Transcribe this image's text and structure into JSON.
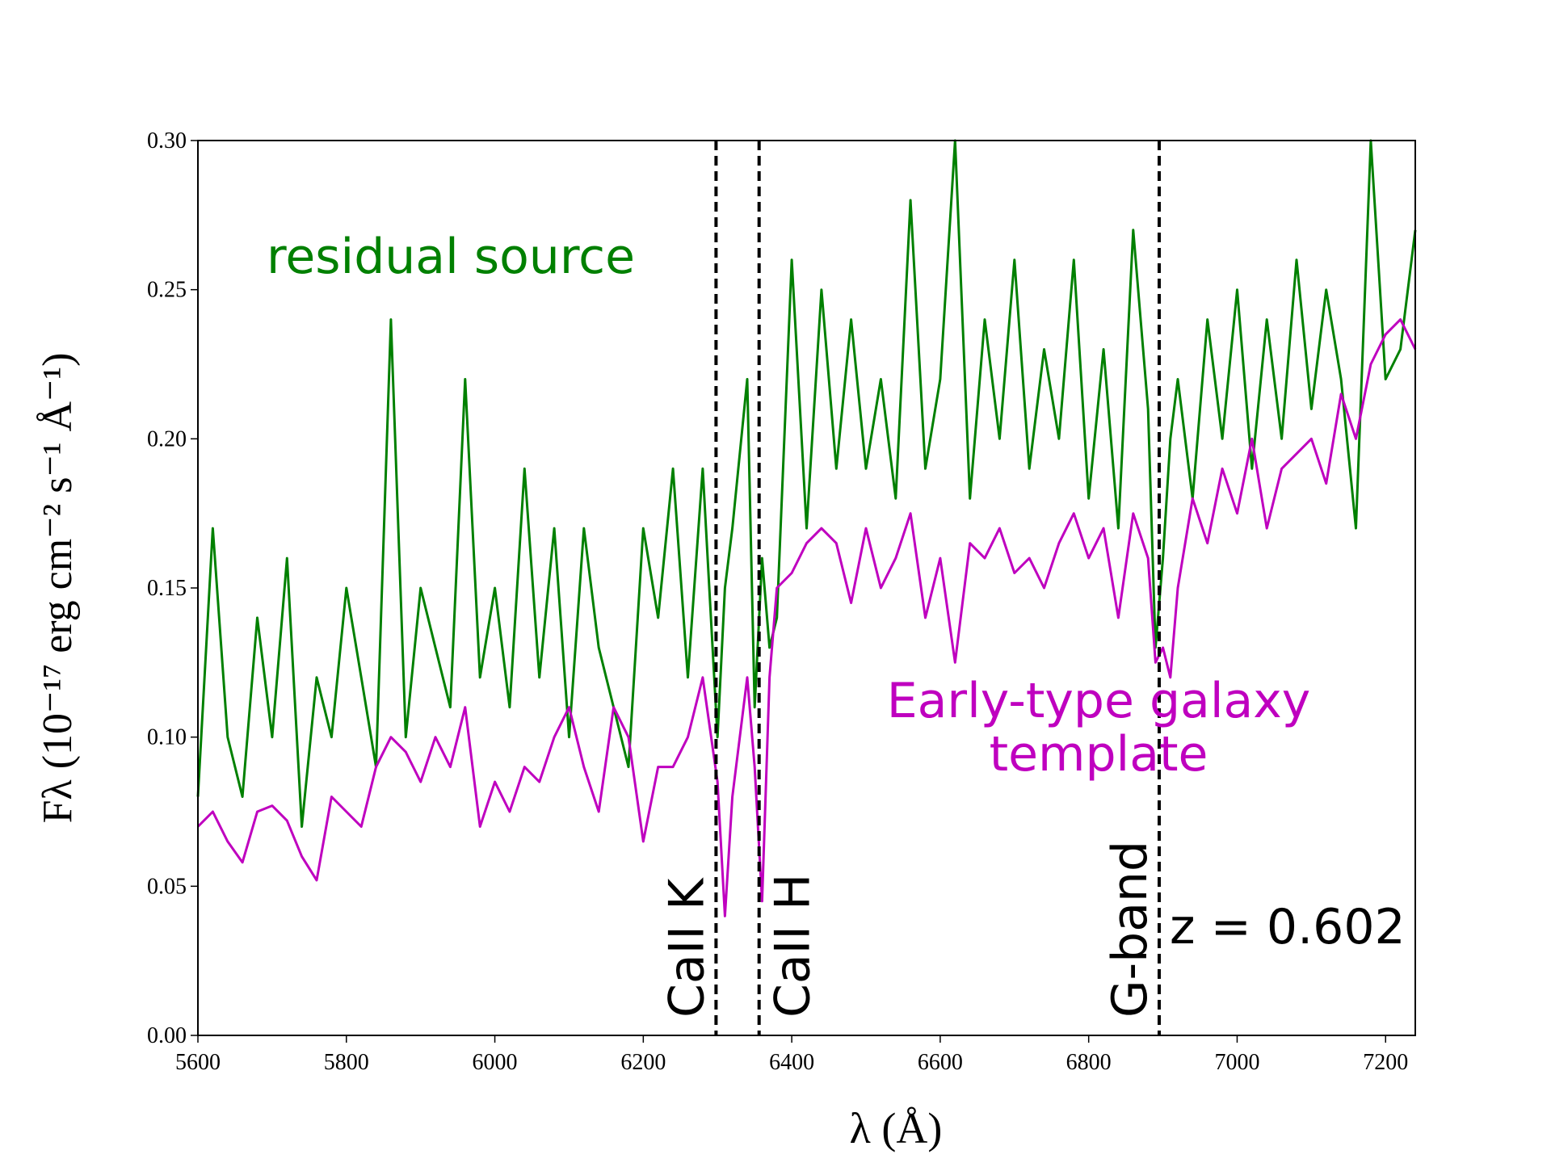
{
  "chart_data": {
    "type": "line",
    "xlabel": "λ (Å)",
    "ylabel": "Fλ (10⁻¹⁷ erg cm⁻² s⁻¹ Å⁻¹)",
    "x": [
      5600,
      5620,
      5640,
      5660,
      5680,
      5700,
      5720,
      5740,
      5760,
      5780,
      5800,
      5820,
      5840,
      5860,
      5880,
      5900,
      5920,
      5940,
      5960,
      5980,
      6000,
      6020,
      6040,
      6060,
      6080,
      6100,
      6120,
      6140,
      6160,
      6180,
      6200,
      6220,
      6240,
      6260,
      6280,
      6300,
      6310,
      6320,
      6340,
      6350,
      6360,
      6370,
      6380,
      6400,
      6420,
      6440,
      6460,
      6480,
      6500,
      6520,
      6540,
      6560,
      6580,
      6600,
      6620,
      6640,
      6660,
      6680,
      6700,
      6720,
      6740,
      6760,
      6780,
      6800,
      6820,
      6840,
      6860,
      6880,
      6890,
      6900,
      6910,
      6920,
      6940,
      6960,
      6980,
      7000,
      7020,
      7040,
      7060,
      7080,
      7100,
      7120,
      7140,
      7160,
      7180,
      7200,
      7220,
      7240
    ],
    "series": [
      {
        "name": "residual source",
        "color": "#008000",
        "values": [
          0.08,
          0.17,
          0.1,
          0.08,
          0.14,
          0.1,
          0.16,
          0.07,
          0.12,
          0.1,
          0.15,
          0.12,
          0.09,
          0.24,
          0.1,
          0.15,
          0.13,
          0.11,
          0.22,
          0.12,
          0.15,
          0.11,
          0.19,
          0.12,
          0.17,
          0.1,
          0.17,
          0.13,
          0.11,
          0.09,
          0.17,
          0.14,
          0.19,
          0.12,
          0.19,
          0.1,
          0.15,
          0.17,
          0.22,
          0.11,
          0.16,
          0.13,
          0.14,
          0.26,
          0.17,
          0.25,
          0.19,
          0.24,
          0.19,
          0.22,
          0.18,
          0.28,
          0.19,
          0.22,
          0.3,
          0.18,
          0.24,
          0.2,
          0.26,
          0.19,
          0.23,
          0.2,
          0.26,
          0.18,
          0.23,
          0.17,
          0.27,
          0.21,
          0.13,
          0.16,
          0.2,
          0.22,
          0.18,
          0.24,
          0.2,
          0.25,
          0.19,
          0.24,
          0.2,
          0.26,
          0.21,
          0.25,
          0.22,
          0.17,
          0.3,
          0.22,
          0.23,
          0.27
        ]
      },
      {
        "name": "Early-type galaxy template",
        "color": "#bf00bf",
        "values": [
          0.07,
          0.075,
          0.065,
          0.058,
          0.075,
          0.077,
          0.072,
          0.06,
          0.052,
          0.08,
          0.075,
          0.07,
          0.09,
          0.1,
          0.095,
          0.085,
          0.1,
          0.09,
          0.11,
          0.07,
          0.085,
          0.075,
          0.09,
          0.085,
          0.1,
          0.11,
          0.09,
          0.075,
          0.11,
          0.1,
          0.065,
          0.09,
          0.09,
          0.1,
          0.12,
          0.085,
          0.04,
          0.08,
          0.12,
          0.09,
          0.045,
          0.12,
          0.15,
          0.155,
          0.165,
          0.17,
          0.165,
          0.145,
          0.17,
          0.15,
          0.16,
          0.175,
          0.14,
          0.16,
          0.125,
          0.165,
          0.16,
          0.17,
          0.155,
          0.16,
          0.15,
          0.165,
          0.175,
          0.16,
          0.17,
          0.14,
          0.175,
          0.16,
          0.125,
          0.13,
          0.12,
          0.15,
          0.18,
          0.165,
          0.19,
          0.175,
          0.2,
          0.17,
          0.19,
          0.195,
          0.2,
          0.185,
          0.215,
          0.2,
          0.225,
          0.235,
          0.24,
          0.23
        ]
      }
    ],
    "vlines": [
      {
        "x": 6298,
        "label": "CaII K"
      },
      {
        "x": 6356,
        "label": "CaII H"
      },
      {
        "x": 6895,
        "label": "G-band"
      }
    ],
    "annotation": "z = 0.602",
    "xlim": [
      5600,
      7240
    ],
    "ylim": [
      0,
      0.3
    ],
    "xticks": [
      5600,
      5800,
      6000,
      6200,
      6400,
      6600,
      6800,
      7000,
      7200
    ],
    "yticks": [
      {
        "value": 0,
        "label": "0.00"
      },
      0.05,
      {
        "value": 0.1,
        "label": "0.10"
      },
      0.15,
      {
        "value": 0.2,
        "label": "0.20"
      },
      0.25,
      {
        "value": 0.3,
        "label": "0.30"
      }
    ]
  }
}
